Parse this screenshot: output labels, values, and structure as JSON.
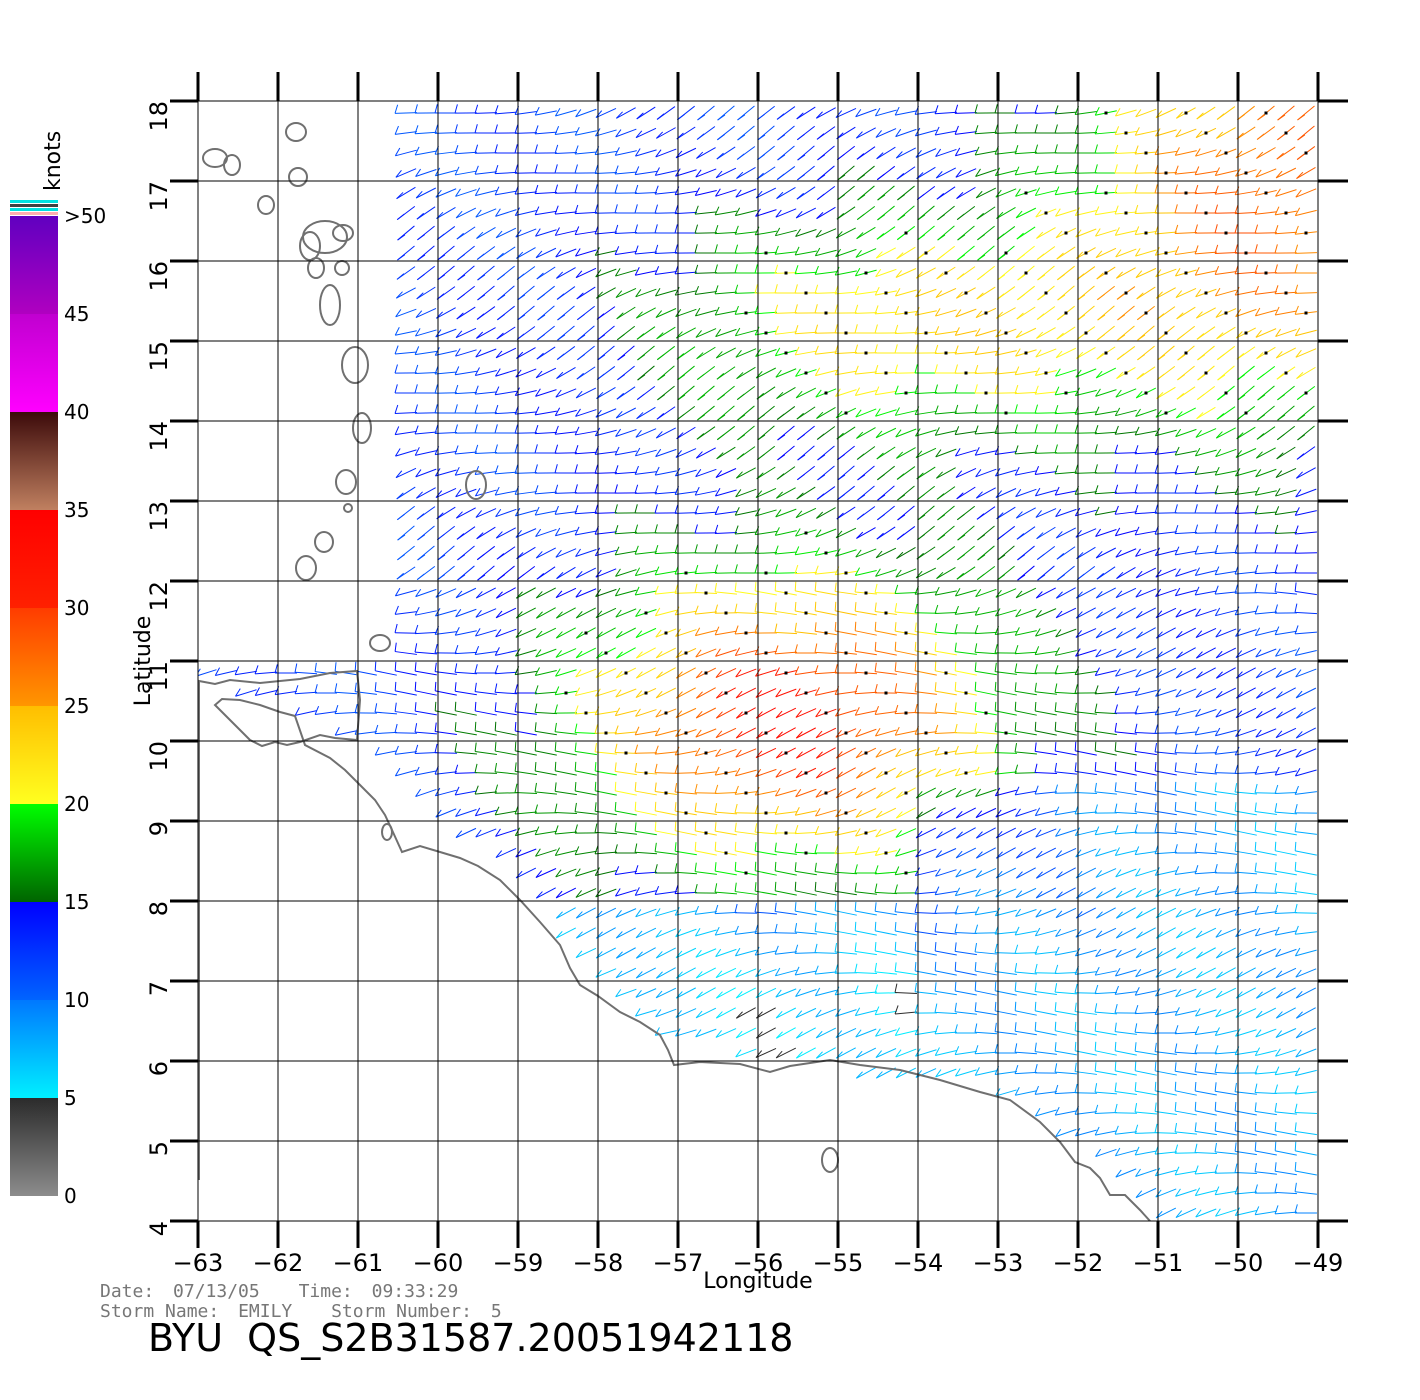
{
  "map": {
    "x_axis_title": "Longitude",
    "y_axis_title": "Latitude",
    "longitude_ticks": [
      "-63",
      "-62",
      "-61",
      "-60",
      "-59",
      "-58",
      "-57",
      "-56",
      "-55",
      "-54",
      "-53",
      "-52",
      "-51",
      "-50",
      "-49"
    ],
    "latitude_ticks": [
      "4",
      "5",
      "6",
      "7",
      "8",
      "9",
      "10",
      "11",
      "12",
      "13",
      "14",
      "15",
      "16",
      "17",
      "18"
    ],
    "lon_range": [
      -63,
      -49
    ],
    "lat_range": [
      4,
      18
    ],
    "coastline_color": "#707070",
    "grid_color": "#000000"
  },
  "legend": {
    "title": "knots",
    "ticks": [
      "0",
      "5",
      "10",
      "15",
      "20",
      "25",
      "30",
      "35",
      "40",
      "45",
      ">50"
    ],
    "bands": [
      {
        "range": [
          0,
          5
        ],
        "color_from": "#8c8c8c",
        "color_to": "#2b2b2b"
      },
      {
        "range": [
          5,
          10
        ],
        "color_from": "#00f0ff",
        "color_to": "#0078ff"
      },
      {
        "range": [
          10,
          15
        ],
        "color_from": "#0064ff",
        "color_to": "#0000ff"
      },
      {
        "range": [
          15,
          20
        ],
        "color_from": "#006400",
        "color_to": "#00ff00"
      },
      {
        "range": [
          20,
          25
        ],
        "color_from": "#ffff20",
        "color_to": "#ffbe00"
      },
      {
        "range": [
          25,
          30
        ],
        "color_from": "#ff9600",
        "color_to": "#ff3c00"
      },
      {
        "range": [
          30,
          35
        ],
        "color_from": "#ff2000",
        "color_to": "#ff0000"
      },
      {
        "range": [
          35,
          40
        ],
        "color_from": "#c08060",
        "color_to": "#3c0a0a"
      },
      {
        "range": [
          40,
          45
        ],
        "color_from": "#ff00ff",
        "color_to": "#c000d0"
      },
      {
        "range": [
          45,
          50
        ],
        "color_from": "#b000c0",
        "color_to": "#6000c0"
      }
    ],
    "overflow_colors": [
      "#00e0e0",
      "#404040",
      "#00e0e0",
      "#ffb0b0"
    ]
  },
  "wind_field": {
    "description_key": "wind barbs colored by speed",
    "approx_speed_zones": [
      {
        "name": "northeast",
        "speed_knots": 28
      },
      {
        "name": "north-central",
        "speed_knots": 22
      },
      {
        "name": "west",
        "speed_knots": 12
      },
      {
        "name": "central-storm",
        "speed_knots": 30
      },
      {
        "name": "southeast",
        "speed_knots": 10
      },
      {
        "name": "south-coast",
        "speed_knots": 7
      }
    ]
  },
  "footer": {
    "date_label": "Date:",
    "date_value": "07/13/05",
    "time_label": "Time:",
    "time_value": "09:33:29",
    "storm_name_label": "Storm Name:",
    "storm_name_value": "EMILY",
    "storm_number_label": "Storm Number:",
    "storm_number_value": "5",
    "product_id": "BYU  QS_S2B31587.20051942118"
  }
}
